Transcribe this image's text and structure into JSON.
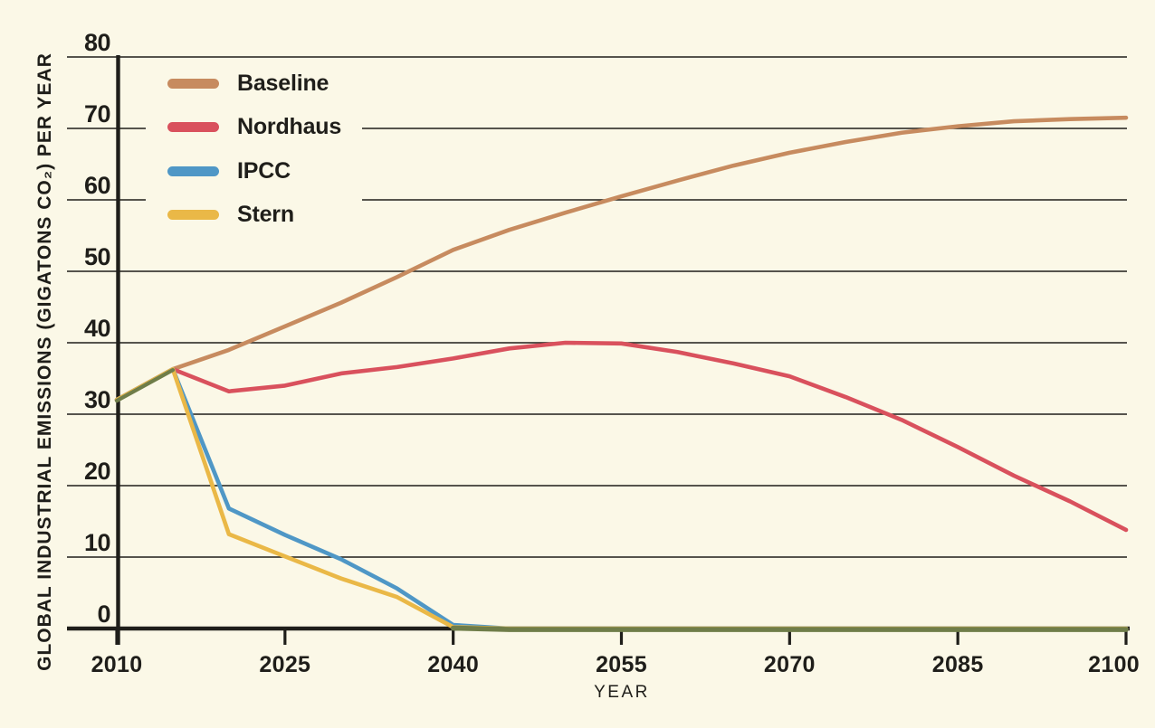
{
  "chart_data": {
    "type": "line",
    "title": "",
    "xlabel": "YEAR",
    "ylabel": "GLOBAL INDUSTRIAL EMISSIONS (GIGATONS CO₂) PER YEAR",
    "xlim": [
      2010,
      2100
    ],
    "ylim": [
      0,
      80
    ],
    "x_ticks": [
      2010,
      2025,
      2040,
      2055,
      2070,
      2085,
      2100
    ],
    "y_ticks": [
      0,
      10,
      20,
      30,
      40,
      50,
      60,
      70,
      80
    ],
    "grid": true,
    "legend_position": "top-left",
    "background_color": "#FBF8E7",
    "ink_color": "#1F1E1A",
    "overlap_color": "#6F7D49",
    "years": [
      2010,
      2015,
      2020,
      2025,
      2030,
      2035,
      2040,
      2045,
      2050,
      2055,
      2060,
      2065,
      2070,
      2075,
      2080,
      2085,
      2090,
      2095,
      2100
    ],
    "series": [
      {
        "name": "Baseline",
        "color": "#C78B5F",
        "values": [
          32,
          36.3,
          39,
          42.3,
          45.6,
          49.2,
          53,
          55.8,
          58.2,
          60.5,
          62.7,
          64.8,
          66.6,
          68.1,
          69.4,
          70.3,
          71,
          71.3,
          71.5
        ]
      },
      {
        "name": "Nordhaus",
        "color": "#D9515D",
        "values": [
          32,
          36.3,
          33.2,
          34,
          35.7,
          36.6,
          37.8,
          39.2,
          40,
          39.9,
          38.7,
          37.1,
          35.3,
          32.4,
          29.2,
          25.4,
          21.4,
          17.8,
          13.8
        ]
      },
      {
        "name": "IPCC",
        "color": "#4F97C6",
        "values": [
          32,
          36.3,
          16.8,
          13.1,
          9.7,
          5.6,
          0.5,
          0,
          0,
          0,
          0,
          0,
          0,
          0,
          0,
          0,
          0,
          0,
          0
        ]
      },
      {
        "name": "Stern",
        "color": "#EAB847",
        "values": [
          32,
          36.3,
          13.2,
          10.1,
          7,
          4.4,
          0.2,
          0,
          0,
          0,
          0,
          0,
          0,
          0,
          0,
          0,
          0,
          0,
          0
        ]
      }
    ]
  }
}
